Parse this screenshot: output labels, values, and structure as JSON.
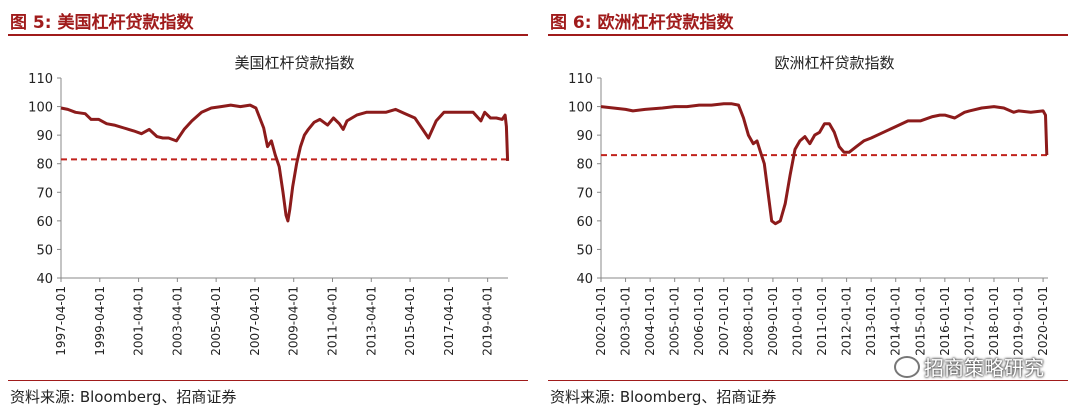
{
  "figures": [
    {
      "fig_title": "图 5:  美国杠杆贷款指数",
      "source": "资料来源:  Bloomberg、招商证券",
      "line_color": "#8c1b1b",
      "ref_color": "#c0231d"
    },
    {
      "fig_title": "图 6:  欧洲杠杆贷款指数",
      "source": "资料来源:  Bloomberg、招商证券",
      "line_color": "#8c1b1b",
      "ref_color": "#c0231d",
      "watermark": "招商策略研究"
    }
  ],
  "chart_data": [
    {
      "type": "line",
      "title": "美国杠杆贷款指数",
      "xlabel": "",
      "ylabel": "",
      "ylim": [
        40,
        110
      ],
      "yticks": [
        40,
        50,
        60,
        70,
        80,
        90,
        100,
        110
      ],
      "x_range": [
        1997.25,
        2020.3
      ],
      "xtick_labels": [
        "1997-04-01",
        "1999-04-01",
        "2001-04-01",
        "2003-04-01",
        "2005-04-01",
        "2007-04-01",
        "2009-04-01",
        "2011-04-01",
        "2013-04-01",
        "2015-04-01",
        "2017-04-01",
        "2019-04-01"
      ],
      "xtick_positions": [
        1997.25,
        1999.25,
        2001.25,
        2003.25,
        2005.25,
        2007.25,
        2009.25,
        2011.25,
        2013.25,
        2015.25,
        2017.25,
        2019.25
      ],
      "reference_line": 81.5,
      "grid": false,
      "legend": "none",
      "series": [
        {
          "x": [
            1997.25,
            1997.6,
            1998.0,
            1998.5,
            1998.8,
            1999.2,
            1999.6,
            2000.0,
            2000.5,
            2001.0,
            2001.4,
            2001.8,
            2002.2,
            2002.5,
            2002.8,
            2003.2,
            2003.6,
            2004.0,
            2004.5,
            2005.0,
            2005.5,
            2006.0,
            2006.5,
            2007.0,
            2007.3,
            2007.5,
            2007.7,
            2007.9,
            2008.1,
            2008.3,
            2008.5,
            2008.7,
            2008.85,
            2008.95,
            2009.05,
            2009.2,
            2009.4,
            2009.6,
            2009.8,
            2010.0,
            2010.3,
            2010.6,
            2011.0,
            2011.3,
            2011.6,
            2011.8,
            2012.0,
            2012.5,
            2013.0,
            2013.5,
            2014.0,
            2014.5,
            2015.0,
            2015.5,
            2015.9,
            2016.2,
            2016.6,
            2017.0,
            2017.5,
            2018.0,
            2018.5,
            2018.9,
            2019.1,
            2019.4,
            2019.7,
            2020.0,
            2020.15,
            2020.22,
            2020.28
          ],
          "y": [
            99.5,
            99,
            98,
            97.5,
            95.5,
            95.5,
            94,
            93.5,
            92.5,
            91.5,
            90.5,
            92,
            89.5,
            89,
            89,
            88,
            92,
            95,
            98,
            99.5,
            100,
            100.5,
            100,
            100.5,
            99.5,
            96,
            92.5,
            86,
            88,
            83,
            79,
            70,
            62,
            60,
            64,
            72,
            80,
            86,
            90,
            92,
            94.5,
            95.5,
            93.5,
            96,
            94,
            92,
            95,
            97,
            98,
            98,
            98,
            99,
            97.5,
            96,
            92,
            89,
            95,
            98,
            98,
            98,
            98,
            95,
            98,
            96,
            96,
            95.5,
            97,
            93,
            81
          ]
        }
      ]
    },
    {
      "type": "line",
      "title": "欧洲杠杆贷款指数",
      "xlabel": "",
      "ylabel": "",
      "ylim": [
        40,
        110
      ],
      "yticks": [
        40,
        50,
        60,
        70,
        80,
        90,
        100,
        110
      ],
      "x_range": [
        2002.0,
        2020.2
      ],
      "xtick_labels": [
        "2002-01-01",
        "2003-01-01",
        "2004-01-01",
        "2005-01-01",
        "2006-01-01",
        "2007-01-01",
        "2008-01-01",
        "2009-01-01",
        "2010-01-01",
        "2011-01-01",
        "2012-01-01",
        "2013-01-01",
        "2014-01-01",
        "2015-01-01",
        "2016-01-01",
        "2017-01-01",
        "2018-01-01",
        "2019-01-01",
        "2020-01-01"
      ],
      "xtick_positions": [
        2002,
        2003,
        2004,
        2005,
        2006,
        2007,
        2008,
        2009,
        2010,
        2011,
        2012,
        2013,
        2014,
        2015,
        2016,
        2017,
        2018,
        2019,
        2020
      ],
      "reference_line": 83,
      "grid": false,
      "legend": "none",
      "series": [
        {
          "x": [
            2002.0,
            2002.5,
            2003.0,
            2003.3,
            2003.8,
            2004.5,
            2005.0,
            2005.5,
            2006.0,
            2006.5,
            2007.0,
            2007.3,
            2007.6,
            2007.8,
            2008.0,
            2008.2,
            2008.35,
            2008.5,
            2008.65,
            2008.8,
            2008.95,
            2009.1,
            2009.3,
            2009.5,
            2009.7,
            2009.9,
            2010.1,
            2010.3,
            2010.5,
            2010.7,
            2010.9,
            2011.1,
            2011.3,
            2011.5,
            2011.7,
            2011.9,
            2012.1,
            2012.4,
            2012.7,
            2013.0,
            2013.5,
            2014.0,
            2014.5,
            2015.0,
            2015.5,
            2015.8,
            2016.0,
            2016.4,
            2016.8,
            2017.0,
            2017.5,
            2018.0,
            2018.4,
            2018.8,
            2019.0,
            2019.5,
            2020.0,
            2020.1,
            2020.15
          ],
          "y": [
            100,
            99.5,
            99,
            98.5,
            99,
            99.5,
            100,
            100,
            100.5,
            100.5,
            101,
            101,
            100.5,
            96,
            90,
            87,
            88,
            84,
            80,
            70,
            60,
            59,
            60,
            66,
            76,
            85,
            88,
            89.5,
            87,
            90,
            91,
            94,
            94,
            91,
            86,
            84,
            84,
            86,
            88,
            89,
            91,
            93,
            95,
            95,
            96.5,
            97,
            97,
            96,
            98,
            98.5,
            99.5,
            100,
            99.5,
            98,
            98.5,
            98,
            98.5,
            97,
            83
          ]
        }
      ]
    }
  ]
}
